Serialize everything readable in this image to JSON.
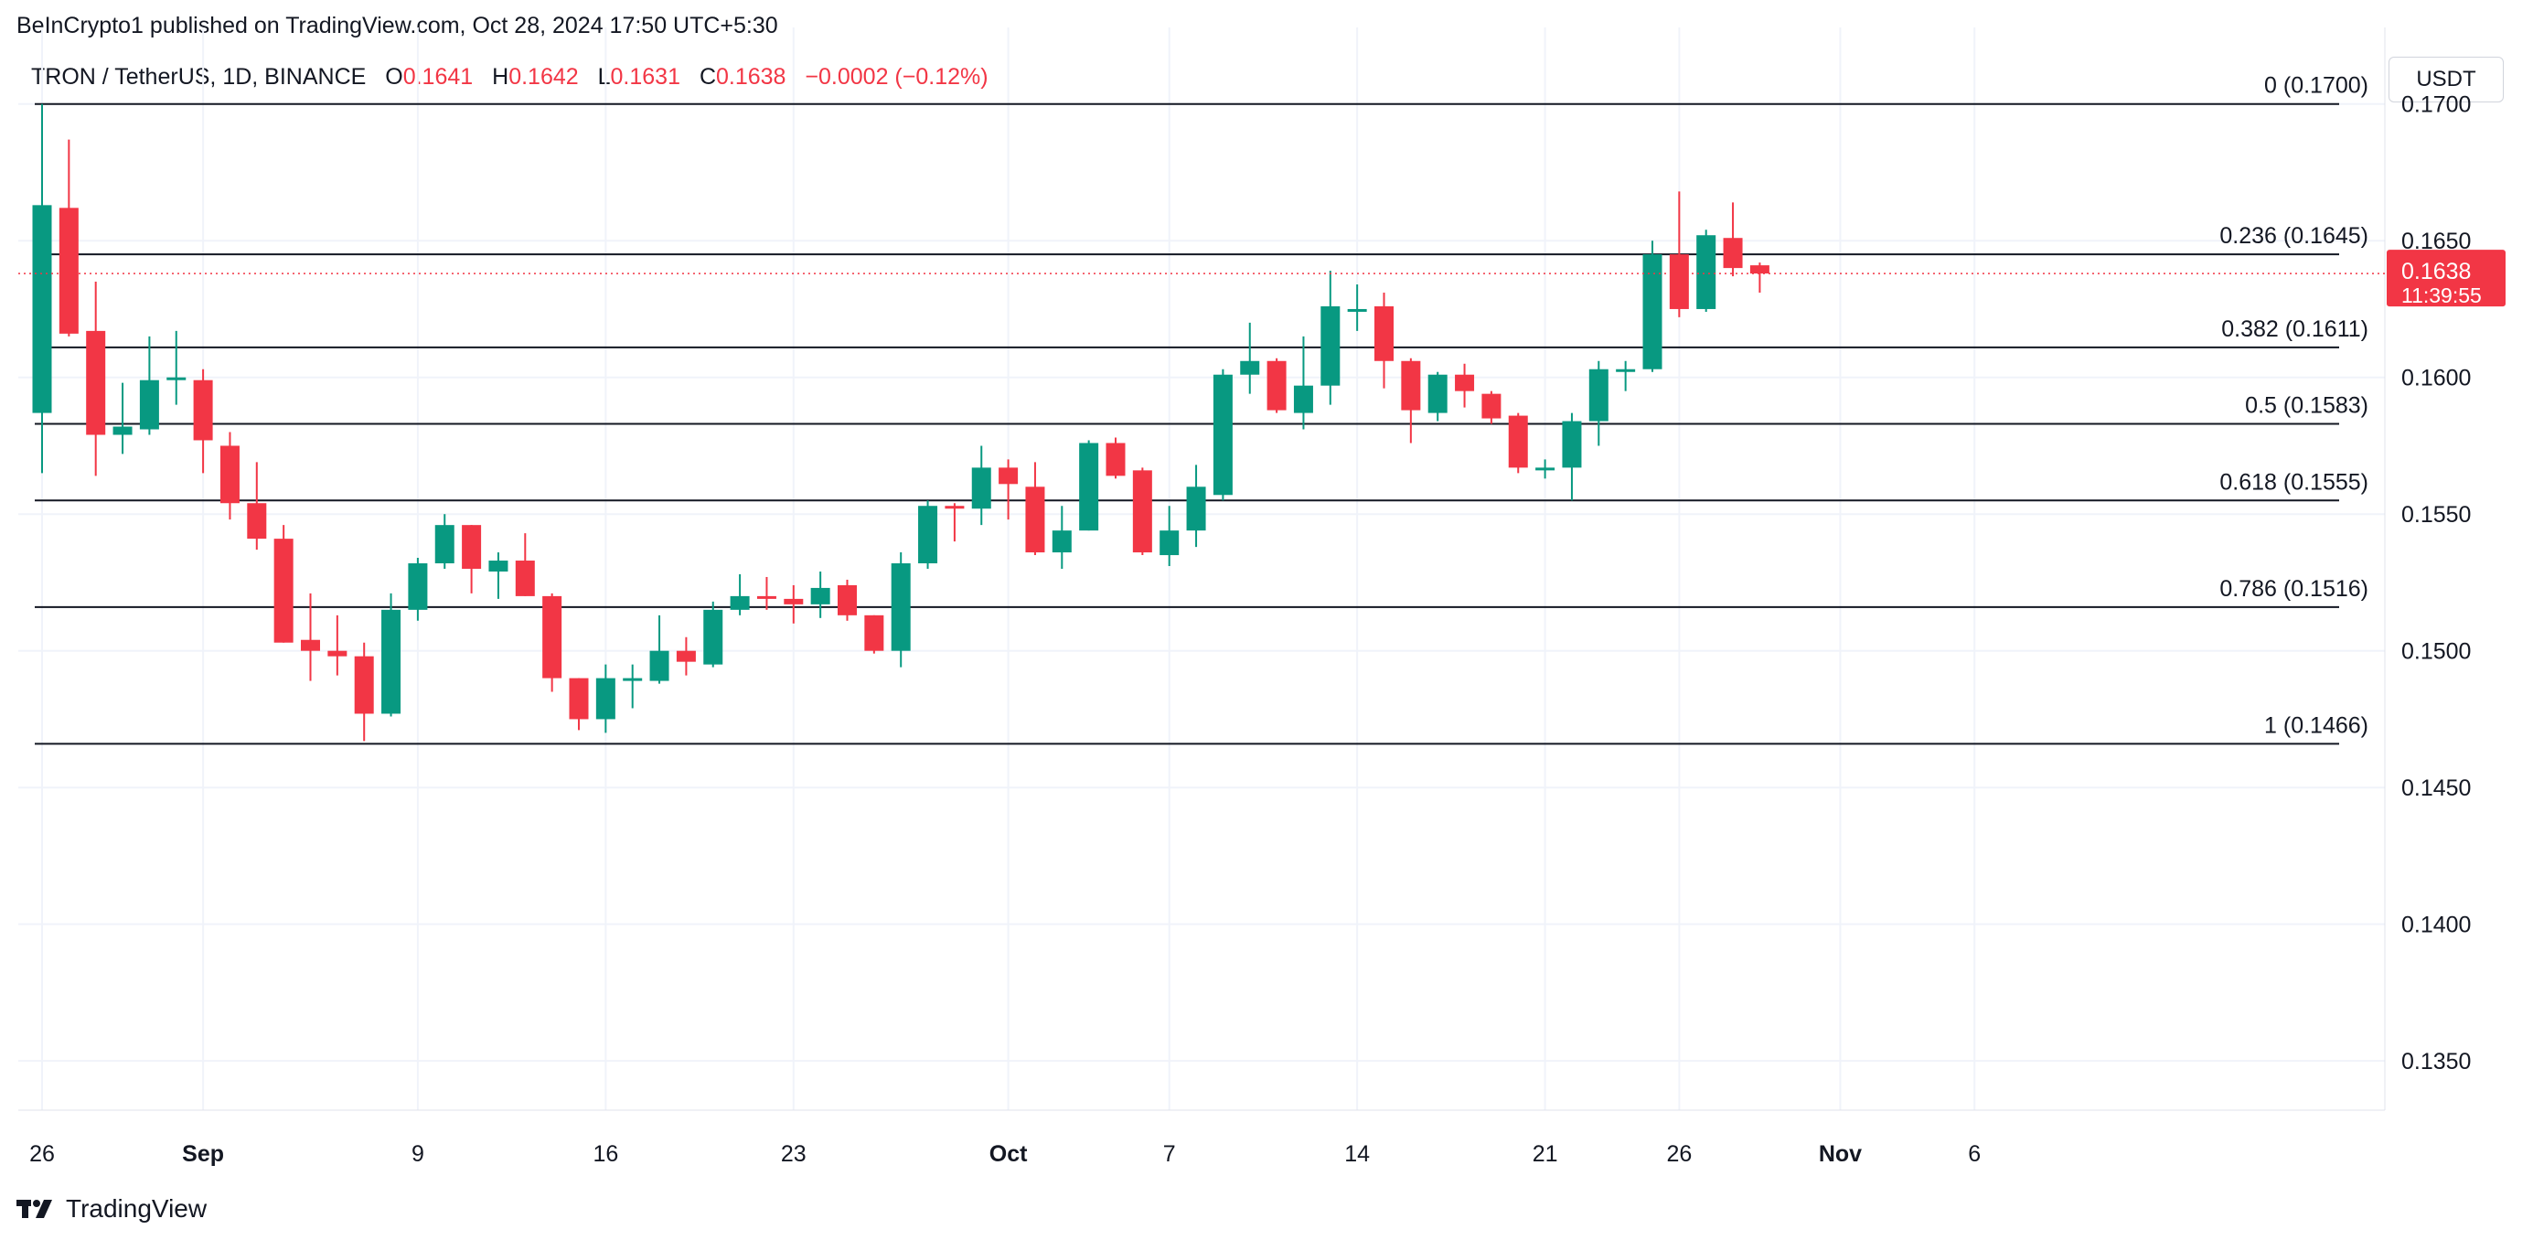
{
  "header": {
    "publish_text": "BeInCrypto1 published on TradingView.com, Oct 28, 2024 17:50 UTC+5:30"
  },
  "legend": {
    "symbol": "TRON / TetherUS, 1D, BINANCE",
    "o_label": "O",
    "o_value": "0.1641",
    "h_label": "H",
    "h_value": "0.1642",
    "l_label": "L",
    "l_value": "0.1631",
    "c_label": "C",
    "c_value": "0.1638",
    "change": "−0.0002 (−0.12%)"
  },
  "toolbar": {
    "currency_button": "USDT"
  },
  "brand": {
    "name": "TradingView"
  },
  "colors": {
    "up": "#089981",
    "down": "#f23645",
    "grid": "#f0f3fa",
    "text": "#131722",
    "price_label": "#f23645"
  },
  "chart_data": {
    "type": "candlestick",
    "ylim": [
      0.1332,
      0.1728
    ],
    "y_ticks": [
      "0.1700",
      "0.1650",
      "0.1600",
      "0.1550",
      "0.1500",
      "0.1450",
      "0.1400",
      "0.1350"
    ],
    "x_ticks": [
      {
        "day": 0,
        "label": "26",
        "bold": false
      },
      {
        "day": 6,
        "label": "Sep",
        "bold": true
      },
      {
        "day": 14,
        "label": "9",
        "bold": false
      },
      {
        "day": 21,
        "label": "16",
        "bold": false
      },
      {
        "day": 28,
        "label": "23",
        "bold": false
      },
      {
        "day": 36,
        "label": "Oct",
        "bold": true
      },
      {
        "day": 42,
        "label": "7",
        "bold": false
      },
      {
        "day": 49,
        "label": "14",
        "bold": false
      },
      {
        "day": 56,
        "label": "21",
        "bold": false
      },
      {
        "day": 61,
        "label": "26",
        "bold": false
      },
      {
        "day": 67,
        "label": "Nov",
        "bold": true
      },
      {
        "day": 72,
        "label": "6",
        "bold": false
      }
    ],
    "candles": [
      {
        "d": "2024-08-25",
        "o": 0.1587,
        "h": 0.17,
        "l": 0.1565,
        "c": 0.1663
      },
      {
        "d": "2024-08-26",
        "o": 0.1662,
        "h": 0.1687,
        "l": 0.1615,
        "c": 0.1616
      },
      {
        "d": "2024-08-27",
        "o": 0.1617,
        "h": 0.1635,
        "l": 0.1564,
        "c": 0.1579
      },
      {
        "d": "2024-08-28",
        "o": 0.1579,
        "h": 0.1598,
        "l": 0.1572,
        "c": 0.1582
      },
      {
        "d": "2024-08-29",
        "o": 0.1581,
        "h": 0.1615,
        "l": 0.1579,
        "c": 0.1599
      },
      {
        "d": "2024-08-30",
        "o": 0.1599,
        "h": 0.1617,
        "l": 0.159,
        "c": 0.16
      },
      {
        "d": "2024-08-31",
        "o": 0.1599,
        "h": 0.1603,
        "l": 0.1565,
        "c": 0.1577
      },
      {
        "d": "2024-09-01",
        "o": 0.1575,
        "h": 0.158,
        "l": 0.1548,
        "c": 0.1554
      },
      {
        "d": "2024-09-02",
        "o": 0.1554,
        "h": 0.1569,
        "l": 0.1537,
        "c": 0.1541
      },
      {
        "d": "2024-09-03",
        "o": 0.1541,
        "h": 0.1546,
        "l": 0.1503,
        "c": 0.1503
      },
      {
        "d": "2024-09-04",
        "o": 0.1504,
        "h": 0.1521,
        "l": 0.1489,
        "c": 0.15
      },
      {
        "d": "2024-09-05",
        "o": 0.15,
        "h": 0.1513,
        "l": 0.1491,
        "c": 0.1498
      },
      {
        "d": "2024-09-06",
        "o": 0.1498,
        "h": 0.1503,
        "l": 0.1467,
        "c": 0.1477
      },
      {
        "d": "2024-09-07",
        "o": 0.1477,
        "h": 0.1521,
        "l": 0.1476,
        "c": 0.1515
      },
      {
        "d": "2024-09-08",
        "o": 0.1515,
        "h": 0.1534,
        "l": 0.1511,
        "c": 0.1532
      },
      {
        "d": "2024-09-09",
        "o": 0.1532,
        "h": 0.155,
        "l": 0.153,
        "c": 0.1546
      },
      {
        "d": "2024-09-10",
        "o": 0.1546,
        "h": 0.1546,
        "l": 0.1521,
        "c": 0.153
      },
      {
        "d": "2024-09-11",
        "o": 0.1529,
        "h": 0.1536,
        "l": 0.1519,
        "c": 0.1533
      },
      {
        "d": "2024-09-12",
        "o": 0.1533,
        "h": 0.1543,
        "l": 0.152,
        "c": 0.152
      },
      {
        "d": "2024-09-13",
        "o": 0.152,
        "h": 0.1521,
        "l": 0.1485,
        "c": 0.149
      },
      {
        "d": "2024-09-14",
        "o": 0.149,
        "h": 0.149,
        "l": 0.1471,
        "c": 0.1475
      },
      {
        "d": "2024-09-15",
        "o": 0.1475,
        "h": 0.1495,
        "l": 0.147,
        "c": 0.149
      },
      {
        "d": "2024-09-16",
        "o": 0.149,
        "h": 0.1495,
        "l": 0.1479,
        "c": 0.149
      },
      {
        "d": "2024-09-17",
        "o": 0.1489,
        "h": 0.1513,
        "l": 0.1488,
        "c": 0.15
      },
      {
        "d": "2024-09-18",
        "o": 0.15,
        "h": 0.1505,
        "l": 0.1491,
        "c": 0.1496
      },
      {
        "d": "2024-09-19",
        "o": 0.1495,
        "h": 0.1518,
        "l": 0.1494,
        "c": 0.1515
      },
      {
        "d": "2024-09-20",
        "o": 0.1515,
        "h": 0.1528,
        "l": 0.1513,
        "c": 0.152
      },
      {
        "d": "2024-09-21",
        "o": 0.152,
        "h": 0.1527,
        "l": 0.1515,
        "c": 0.1519
      },
      {
        "d": "2024-09-22",
        "o": 0.1519,
        "h": 0.1524,
        "l": 0.151,
        "c": 0.1517
      },
      {
        "d": "2024-09-23",
        "o": 0.1517,
        "h": 0.1529,
        "l": 0.1512,
        "c": 0.1523
      },
      {
        "d": "2024-09-24",
        "o": 0.1524,
        "h": 0.1526,
        "l": 0.1511,
        "c": 0.1513
      },
      {
        "d": "2024-09-25",
        "o": 0.1513,
        "h": 0.1513,
        "l": 0.1499,
        "c": 0.15
      },
      {
        "d": "2024-09-26",
        "o": 0.15,
        "h": 0.1536,
        "l": 0.1494,
        "c": 0.1532
      },
      {
        "d": "2024-09-27",
        "o": 0.1532,
        "h": 0.1555,
        "l": 0.153,
        "c": 0.1553
      },
      {
        "d": "2024-09-28",
        "o": 0.1553,
        "h": 0.1554,
        "l": 0.154,
        "c": 0.1552
      },
      {
        "d": "2024-09-29",
        "o": 0.1552,
        "h": 0.1575,
        "l": 0.1546,
        "c": 0.1567
      },
      {
        "d": "2024-09-30",
        "o": 0.1567,
        "h": 0.157,
        "l": 0.1548,
        "c": 0.1561
      },
      {
        "d": "2024-10-01",
        "o": 0.156,
        "h": 0.1569,
        "l": 0.1535,
        "c": 0.1536
      },
      {
        "d": "2024-10-02",
        "o": 0.1536,
        "h": 0.1553,
        "l": 0.153,
        "c": 0.1544
      },
      {
        "d": "2024-10-03",
        "o": 0.1544,
        "h": 0.1577,
        "l": 0.1544,
        "c": 0.1576
      },
      {
        "d": "2024-10-04",
        "o": 0.1576,
        "h": 0.1578,
        "l": 0.1563,
        "c": 0.1564
      },
      {
        "d": "2024-10-05",
        "o": 0.1566,
        "h": 0.1567,
        "l": 0.1535,
        "c": 0.1536
      },
      {
        "d": "2024-10-06",
        "o": 0.1535,
        "h": 0.1553,
        "l": 0.1531,
        "c": 0.1544
      },
      {
        "d": "2024-10-07",
        "o": 0.1544,
        "h": 0.1568,
        "l": 0.1538,
        "c": 0.156
      },
      {
        "d": "2024-10-08",
        "o": 0.1557,
        "h": 0.1603,
        "l": 0.1555,
        "c": 0.1601
      },
      {
        "d": "2024-10-09",
        "o": 0.1601,
        "h": 0.162,
        "l": 0.1594,
        "c": 0.1606
      },
      {
        "d": "2024-10-10",
        "o": 0.1606,
        "h": 0.1607,
        "l": 0.1587,
        "c": 0.1588
      },
      {
        "d": "2024-10-11",
        "o": 0.1587,
        "h": 0.1615,
        "l": 0.1581,
        "c": 0.1597
      },
      {
        "d": "2024-10-12",
        "o": 0.1597,
        "h": 0.1639,
        "l": 0.159,
        "c": 0.1626
      },
      {
        "d": "2024-10-13",
        "o": 0.1625,
        "h": 0.1634,
        "l": 0.1617,
        "c": 0.1625
      },
      {
        "d": "2024-10-14",
        "o": 0.1626,
        "h": 0.1631,
        "l": 0.1596,
        "c": 0.1606
      },
      {
        "d": "2024-10-15",
        "o": 0.1606,
        "h": 0.1607,
        "l": 0.1576,
        "c": 0.1588
      },
      {
        "d": "2024-10-16",
        "o": 0.1587,
        "h": 0.1602,
        "l": 0.1584,
        "c": 0.1601
      },
      {
        "d": "2024-10-17",
        "o": 0.1601,
        "h": 0.1605,
        "l": 0.1589,
        "c": 0.1595
      },
      {
        "d": "2024-10-18",
        "o": 0.1594,
        "h": 0.1595,
        "l": 0.1583,
        "c": 0.1585
      },
      {
        "d": "2024-10-19",
        "o": 0.1586,
        "h": 0.1587,
        "l": 0.1565,
        "c": 0.1567
      },
      {
        "d": "2024-10-20",
        "o": 0.1567,
        "h": 0.157,
        "l": 0.1563,
        "c": 0.1567
      },
      {
        "d": "2024-10-21",
        "o": 0.1567,
        "h": 0.1587,
        "l": 0.1555,
        "c": 0.1584
      },
      {
        "d": "2024-10-22",
        "o": 0.1584,
        "h": 0.1606,
        "l": 0.1575,
        "c": 0.1603
      },
      {
        "d": "2024-10-23",
        "o": 0.1603,
        "h": 0.1606,
        "l": 0.1595,
        "c": 0.1603
      },
      {
        "d": "2024-10-24",
        "o": 0.1603,
        "h": 0.165,
        "l": 0.1602,
        "c": 0.1645
      },
      {
        "d": "2024-10-25",
        "o": 0.1645,
        "h": 0.1668,
        "l": 0.1622,
        "c": 0.1625
      },
      {
        "d": "2024-10-26",
        "o": 0.1625,
        "h": 0.1654,
        "l": 0.1624,
        "c": 0.1652
      },
      {
        "d": "2024-10-27",
        "o": 0.1651,
        "h": 0.1664,
        "l": 0.1637,
        "c": 0.164
      },
      {
        "d": "2024-10-28",
        "o": 0.1641,
        "h": 0.1642,
        "l": 0.1631,
        "c": 0.1638
      }
    ],
    "fib_levels": [
      {
        "price": 0.17,
        "label": "0 (0.1700)"
      },
      {
        "price": 0.1645,
        "label": "0.236 (0.1645)"
      },
      {
        "price": 0.1611,
        "label": "0.382 (0.1611)"
      },
      {
        "price": 0.1583,
        "label": "0.5 (0.1583)"
      },
      {
        "price": 0.1555,
        "label": "0.618 (0.1555)"
      },
      {
        "price": 0.1516,
        "label": "0.786 (0.1516)"
      },
      {
        "price": 0.1466,
        "label": "1 (0.1466)"
      }
    ],
    "last_price": {
      "value": 0.1638,
      "label": "0.1638",
      "countdown": "11:39:55"
    }
  }
}
